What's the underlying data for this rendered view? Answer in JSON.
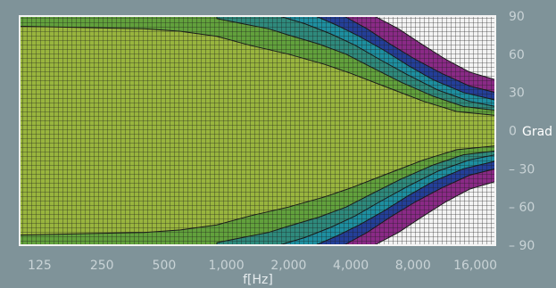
{
  "chart_data": {
    "type": "heatmap",
    "title": "",
    "xlabel": "f[Hz]",
    "ylabel": "Grad",
    "x_scale": "log",
    "x_ticks": [
      125,
      250,
      500,
      1000,
      2000,
      4000,
      8000,
      16000
    ],
    "x_tick_labels": [
      "125",
      "250",
      "500",
      "1,000",
      "2,000",
      "4,000",
      "8,000",
      "16,000"
    ],
    "xlim": [
      100,
      20000
    ],
    "y_ticks": [
      90,
      60,
      30,
      0,
      -30,
      -60,
      -90
    ],
    "y_tick_labels": [
      "90",
      "60",
      "30",
      "0",
      "– 30",
      "– 60",
      "– 90"
    ],
    "ylim": [
      -90,
      90
    ],
    "grid": true,
    "colors": {
      "background": "#7f9399",
      "level_outer": "#99b53e",
      "level_green": "#62a13c",
      "level_teal": "#2f8a7c",
      "level_cyan": "#1e8fa0",
      "level_blue": "#243f98",
      "level_magenta": "#8a2a86",
      "level_low": "#f3f3f3",
      "grid": "#1a1a1a"
    },
    "series": [
      {
        "values": [
          [
            100,
            82
          ],
          [
            200,
            81
          ],
          [
            400,
            80
          ],
          [
            600,
            78
          ],
          [
            900,
            74
          ],
          [
            1300,
            67
          ],
          [
            2000,
            60
          ],
          [
            3000,
            52
          ],
          [
            4000,
            45
          ],
          [
            6000,
            34
          ],
          [
            9000,
            23
          ],
          [
            13000,
            15
          ],
          [
            20000,
            12
          ]
        ]
      },
      {
        "values": [
          [
            900,
            88
          ],
          [
            1200,
            84
          ],
          [
            1600,
            80
          ],
          [
            2000,
            75
          ],
          [
            2800,
            68
          ],
          [
            3800,
            60
          ],
          [
            5000,
            50
          ],
          [
            7000,
            38
          ],
          [
            10000,
            27
          ],
          [
            14000,
            19
          ],
          [
            20000,
            16
          ]
        ]
      },
      {
        "values": [
          [
            1800,
            90
          ],
          [
            2400,
            84
          ],
          [
            3200,
            76
          ],
          [
            4200,
            67
          ],
          [
            5500,
            56
          ],
          [
            7500,
            44
          ],
          [
            10500,
            32
          ],
          [
            15000,
            23
          ],
          [
            20000,
            19
          ]
        ]
      },
      {
        "values": [
          [
            2700,
            90
          ],
          [
            3400,
            83
          ],
          [
            4400,
            74
          ],
          [
            5800,
            63
          ],
          [
            7600,
            51
          ],
          [
            10000,
            40
          ],
          [
            14000,
            30
          ],
          [
            20000,
            24
          ]
        ]
      },
      {
        "values": [
          [
            3700,
            90
          ],
          [
            4800,
            80
          ],
          [
            6200,
            68
          ],
          [
            8200,
            56
          ],
          [
            11000,
            45
          ],
          [
            15000,
            35
          ],
          [
            20000,
            30
          ]
        ]
      },
      {
        "values": [
          [
            5200,
            90
          ],
          [
            6800,
            80
          ],
          [
            8800,
            68
          ],
          [
            11500,
            56
          ],
          [
            15000,
            46
          ],
          [
            20000,
            40
          ]
        ]
      }
    ]
  }
}
